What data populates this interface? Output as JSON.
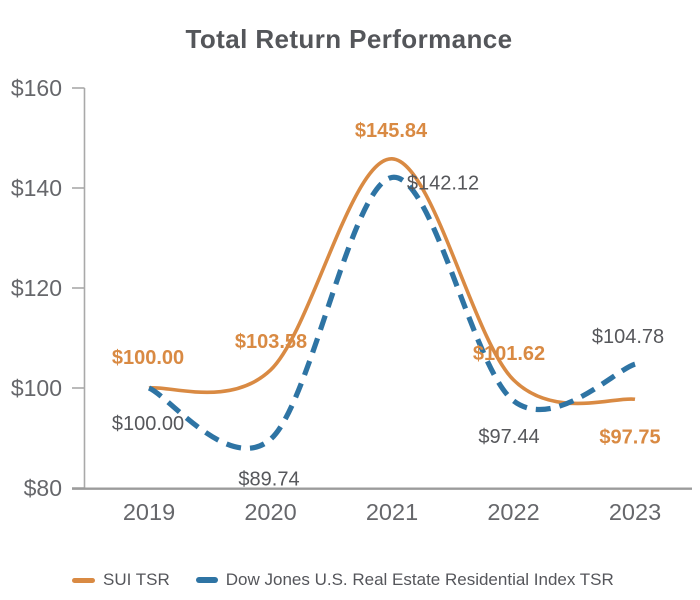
{
  "title": "Total Return Performance",
  "chart_data": {
    "type": "line",
    "title": "Total Return Performance",
    "categories": [
      "2019",
      "2020",
      "2021",
      "2022",
      "2023"
    ],
    "series": [
      {
        "name": "SUI TSR",
        "color": "#D98A43",
        "line_style": "solid",
        "values": [
          100.0,
          103.58,
          145.84,
          101.62,
          97.75
        ],
        "point_labels": [
          "$100.00",
          "$103.58",
          "$145.84",
          "$101.62",
          "$97.75"
        ],
        "label_style": "bold-orange"
      },
      {
        "name": "Dow Jones U.S. Real Estate Residential Index TSR",
        "color": "#2E74A4",
        "line_style": "dashed",
        "values": [
          100.0,
          89.74,
          142.12,
          97.44,
          104.78
        ],
        "point_labels": [
          "$100.00",
          "$89.74",
          "$142.12",
          "$97.44",
          "$104.78"
        ],
        "label_style": "regular-gray"
      }
    ],
    "y_axis": {
      "min": 80,
      "max": 160,
      "tick_step": 20,
      "tick_labels": [
        "$80",
        "$100",
        "$120",
        "$140",
        "$160"
      ]
    },
    "x_axis": {
      "tick_labels": [
        "2019",
        "2020",
        "2021",
        "2022",
        "2023"
      ]
    },
    "grid": false,
    "legend_position": "bottom"
  },
  "legend": {
    "items": [
      {
        "label": "SUI TSR",
        "color": "#D98A43"
      },
      {
        "label": "Dow Jones U.S. Real Estate Residential Index TSR",
        "color": "#2E74A4"
      }
    ]
  },
  "colors": {
    "sui_orange": "#D98A43",
    "dow_blue": "#2E74A4",
    "title_gray": "#54565A",
    "axis_label_gray": "#66676B",
    "data_label_gray": "#56575B",
    "axis_line_gray": "#A9A9A9"
  }
}
